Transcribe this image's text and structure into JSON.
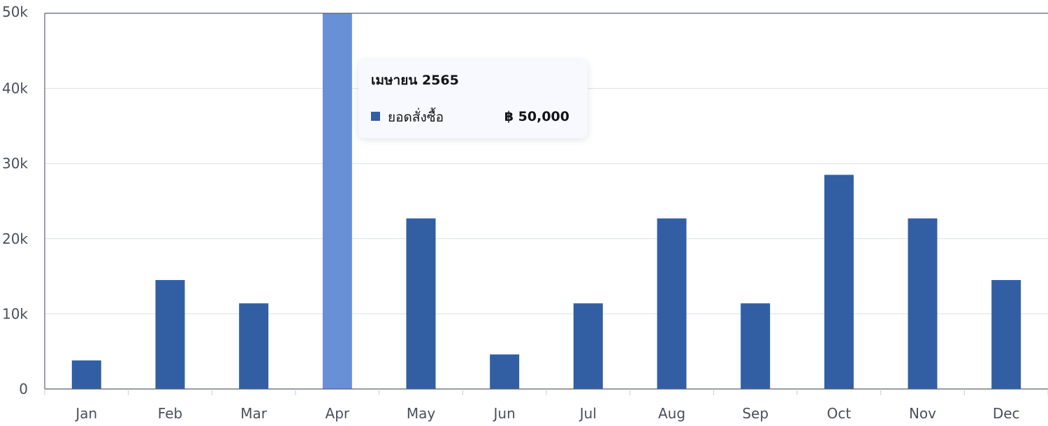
{
  "chart_data": {
    "type": "bar",
    "categories": [
      "Jan",
      "Feb",
      "Mar",
      "Apr",
      "May",
      "Jun",
      "Jul",
      "Aug",
      "Sep",
      "Oct",
      "Nov",
      "Dec"
    ],
    "series": [
      {
        "name": "ยอดสั่งซื้อ",
        "values": [
          3800,
          14500,
          11400,
          50000,
          22700,
          4600,
          11400,
          22700,
          11400,
          28500,
          22700,
          14500
        ]
      }
    ],
    "ylim": [
      0,
      50000
    ],
    "yticks": [
      {
        "value": 0,
        "label": "0"
      },
      {
        "value": 10000,
        "label": "10k"
      },
      {
        "value": 20000,
        "label": "20k"
      },
      {
        "value": 30000,
        "label": "30k"
      },
      {
        "value": 40000,
        "label": "40k"
      },
      {
        "value": 50000,
        "label": "50k"
      }
    ],
    "grid": true,
    "highlighted_index": 3,
    "colors": {
      "bar": "#325fa4",
      "bar_highlight": "#6890d6"
    }
  },
  "tooltip": {
    "title": "เมษายน 2565",
    "series_label": "ยอดสั่งซื้อ",
    "value": "฿ 50,000",
    "swatch_color": "#325fa4"
  }
}
